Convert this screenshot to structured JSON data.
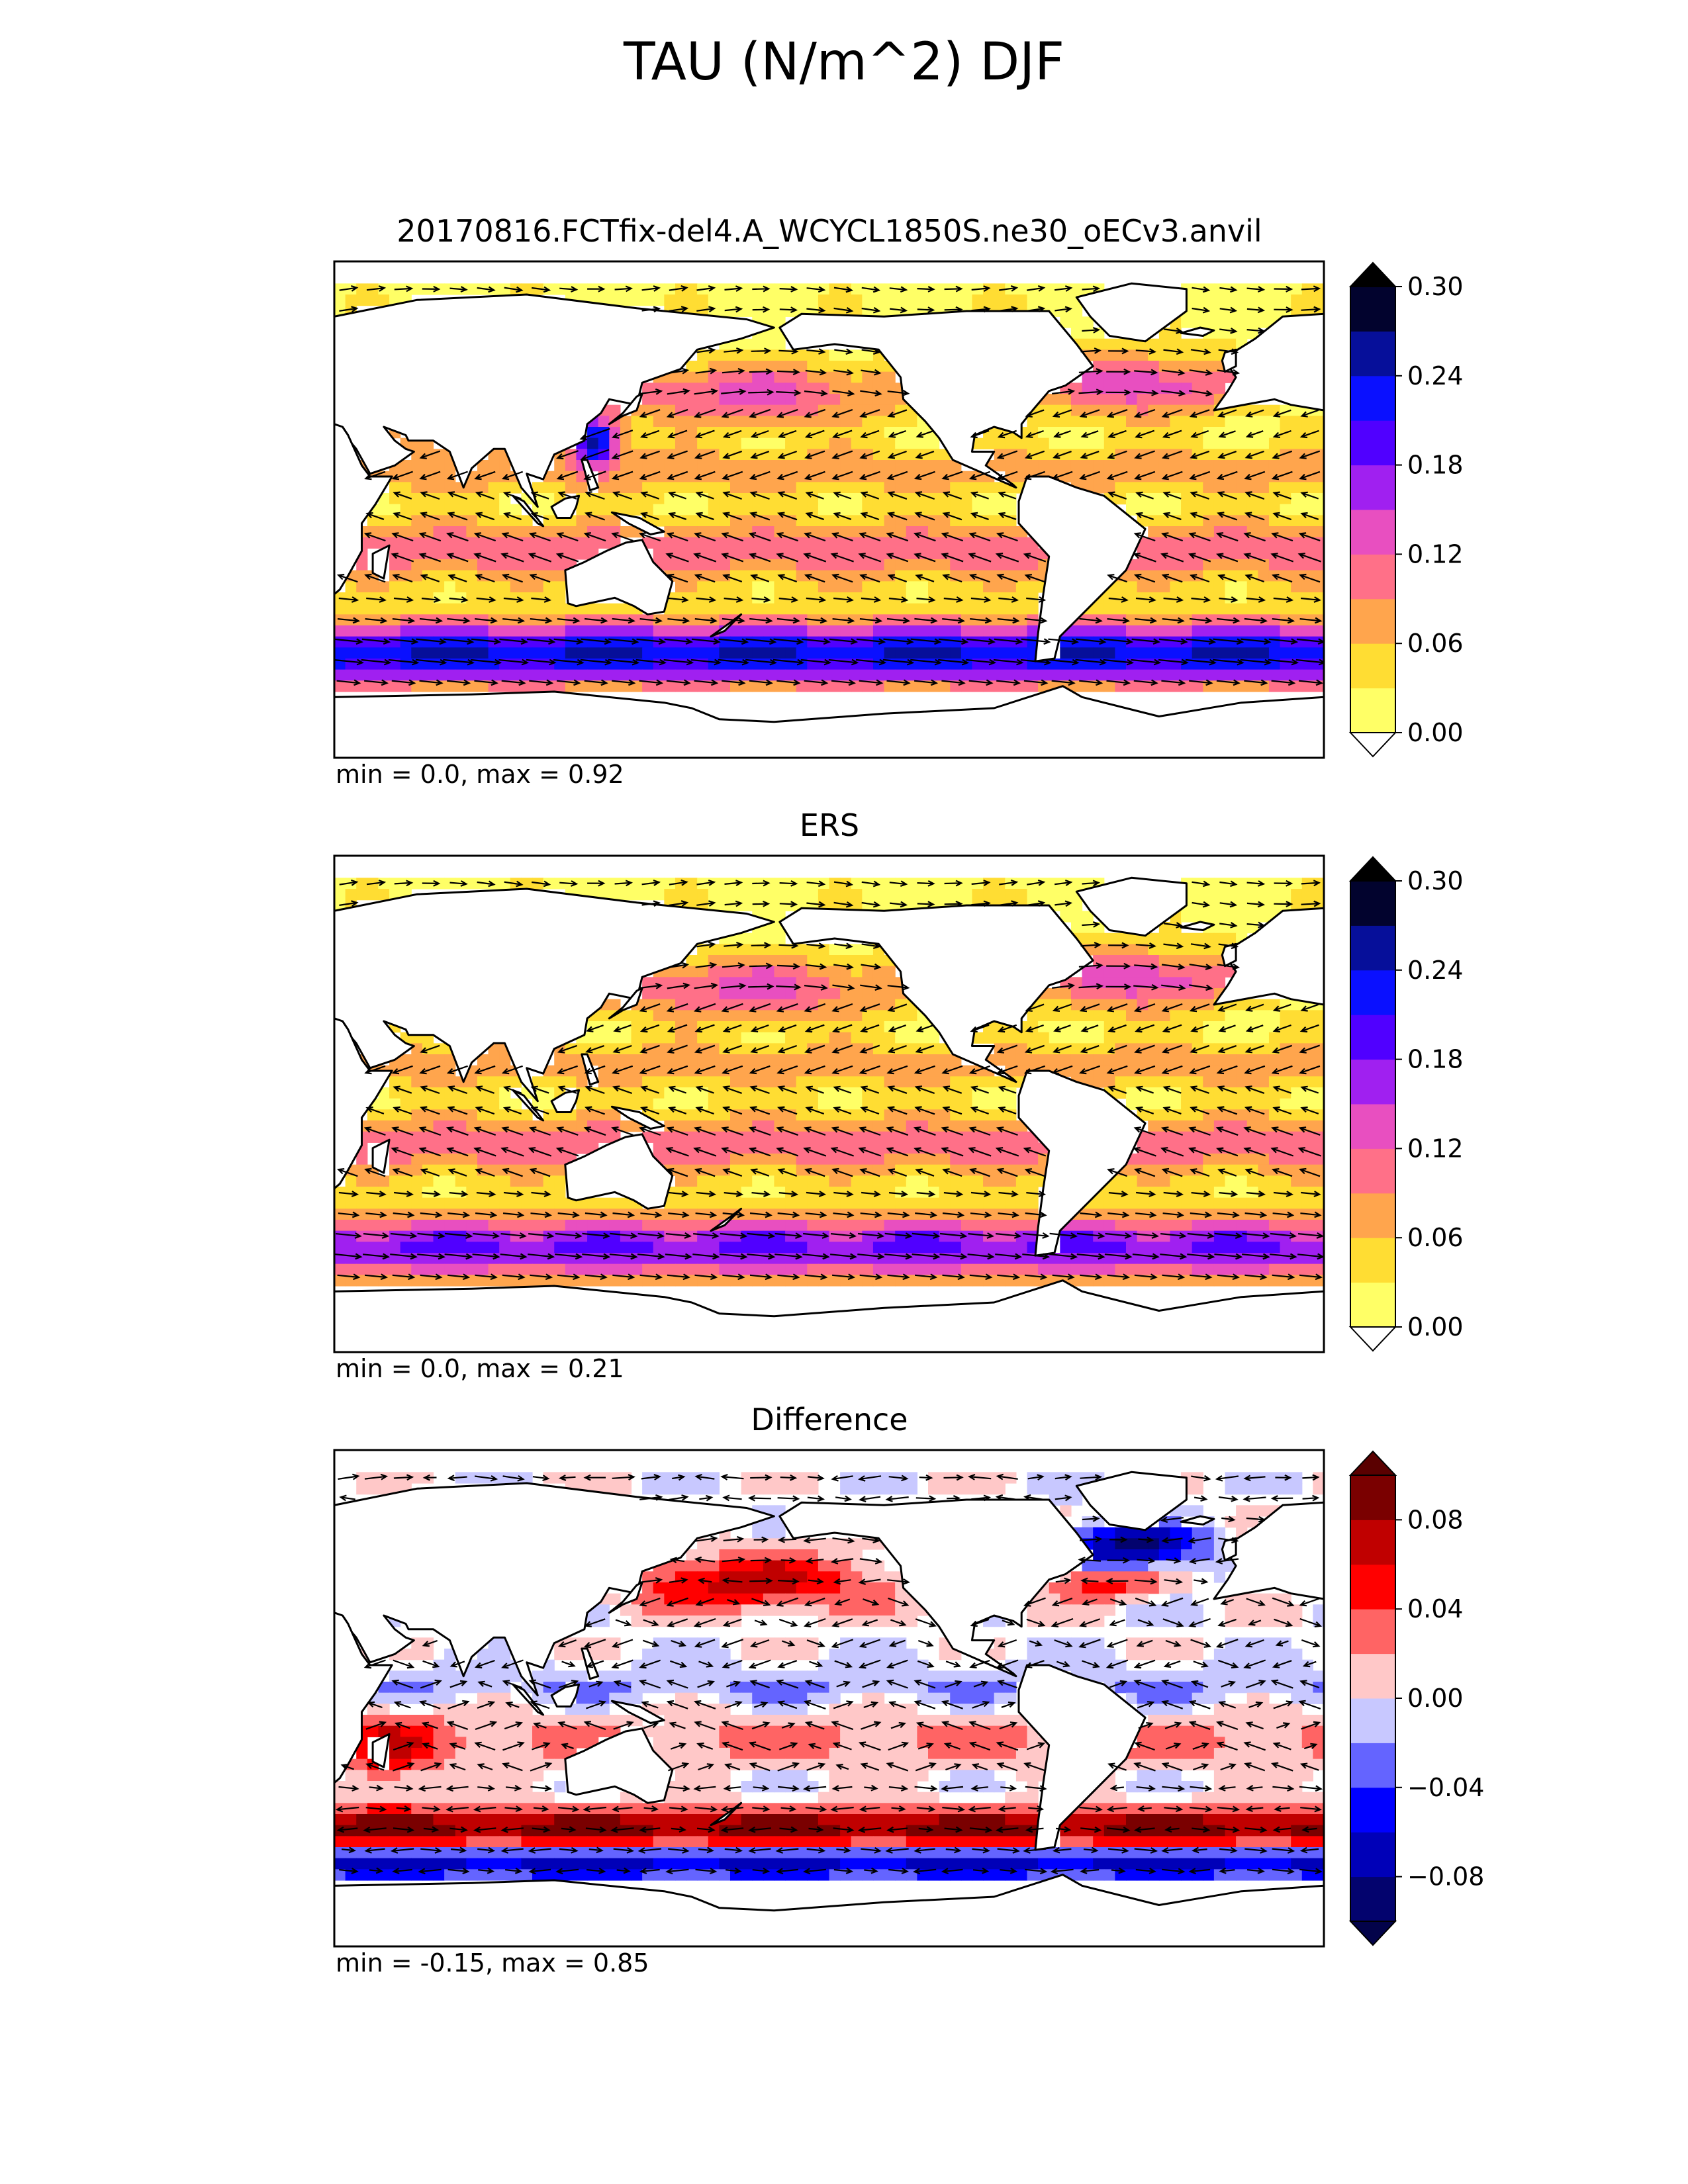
{
  "figure": {
    "title": "TAU (N/m^2) DJF"
  },
  "colors": {
    "seq": [
      "#ffff66",
      "#ffdd33",
      "#ffa54d",
      "#ff7088",
      "#e84fc0",
      "#a020f0",
      "#5000ff",
      "#0a10ff",
      "#060f9a",
      "#02032e"
    ],
    "seq_under": "#ffffff",
    "seq_over": "#000000",
    "diff": [
      "#03036e",
      "#0000b8",
      "#0000ff",
      "#6464ff",
      "#c8c8ff",
      "#ffc8c8",
      "#ff6464",
      "#ff0000",
      "#c00000",
      "#7a0000"
    ],
    "diff_under": "#03034a",
    "diff_over": "#5a0000",
    "land": "#ffffff",
    "coast": "#000000"
  },
  "chart_data": [
    {
      "type": "heatmap",
      "title": "20170816.FCTfix-del4.A_WCYCL1850S.ne30_oECv3.anvil",
      "stats": "min = 0.0, max = 0.92",
      "colorbar": {
        "levels": [
          0.0,
          0.03,
          0.06,
          0.09,
          0.12,
          0.15,
          0.18,
          0.21,
          0.24,
          0.27,
          0.3
        ],
        "ticks": [
          "0.00",
          "0.06",
          "0.12",
          "0.18",
          "0.24",
          "0.30"
        ],
        "extend": "both"
      },
      "min": 0.0,
      "max": 0.92,
      "overlay": "wind stress vectors"
    },
    {
      "type": "heatmap",
      "title": "ERS",
      "stats": "min = 0.0, max = 0.21",
      "colorbar": {
        "levels": [
          0.0,
          0.03,
          0.06,
          0.09,
          0.12,
          0.15,
          0.18,
          0.21,
          0.24,
          0.27,
          0.3
        ],
        "ticks": [
          "0.00",
          "0.06",
          "0.12",
          "0.18",
          "0.24",
          "0.30"
        ],
        "extend": "both"
      },
      "min": 0.0,
      "max": 0.21,
      "overlay": "wind stress vectors"
    },
    {
      "type": "heatmap",
      "title": "Difference",
      "stats": "min = -0.15, max = 0.85",
      "colorbar": {
        "levels": [
          -0.1,
          -0.08,
          -0.06,
          -0.04,
          -0.02,
          0.0,
          0.02,
          0.04,
          0.06,
          0.08,
          0.1
        ],
        "ticks": [
          "0.08",
          "0.04",
          "0.00",
          "−0.04",
          "−0.08"
        ],
        "extend": "both"
      },
      "min": -0.15,
      "max": 0.85,
      "overlay": "wind stress difference vectors"
    }
  ]
}
